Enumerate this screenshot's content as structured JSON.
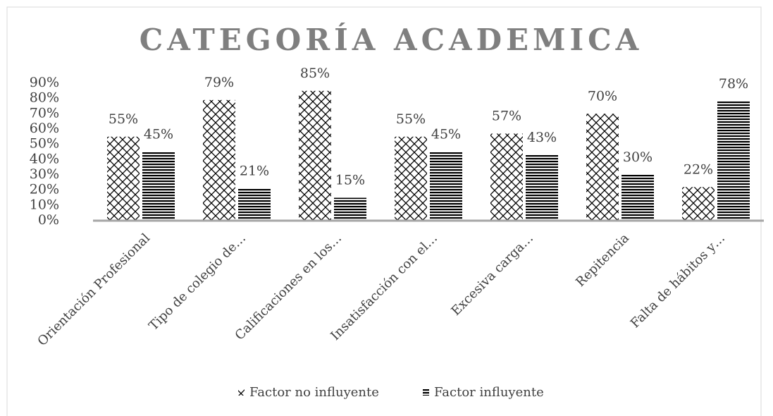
{
  "chart_data": {
    "type": "bar",
    "title": "CATEGORÍA ACADEMICA",
    "categories": [
      "Orientación Profesional",
      "Tipo de colegio de…",
      "Calificaciones en los…",
      "Insatisfacción con el…",
      "Excesiva carga…",
      "Repitencia",
      "Falta de hábitos y…"
    ],
    "series": [
      {
        "name": "Factor no influyente",
        "color": "#000000",
        "pattern": "crosshatch",
        "values": [
          55,
          79,
          85,
          55,
          57,
          70,
          22
        ],
        "value_labels": [
          "55%",
          "79%",
          "85%",
          "55%",
          "57%",
          "70%",
          "22%"
        ]
      },
      {
        "name": "Factor influyente",
        "color": "#000000",
        "pattern": "horizontal",
        "values": [
          45,
          21,
          15,
          45,
          43,
          30,
          78
        ],
        "value_labels": [
          "45%",
          "21%",
          "15%",
          "45%",
          "43%",
          "30%",
          "78%"
        ]
      }
    ],
    "ylim": [
      0,
      90
    ],
    "yticks": [
      {
        "value": 0,
        "label": "0%"
      },
      {
        "value": 10,
        "label": "10%"
      },
      {
        "value": 20,
        "label": "20%"
      },
      {
        "value": 30,
        "label": "30%"
      },
      {
        "value": 40,
        "label": "40%"
      },
      {
        "value": 50,
        "label": "50%"
      },
      {
        "value": 60,
        "label": "60%"
      },
      {
        "value": 70,
        "label": "70%"
      },
      {
        "value": 80,
        "label": "80%"
      },
      {
        "value": 90,
        "label": "90%"
      }
    ],
    "grid": false,
    "legend": "bottom"
  }
}
